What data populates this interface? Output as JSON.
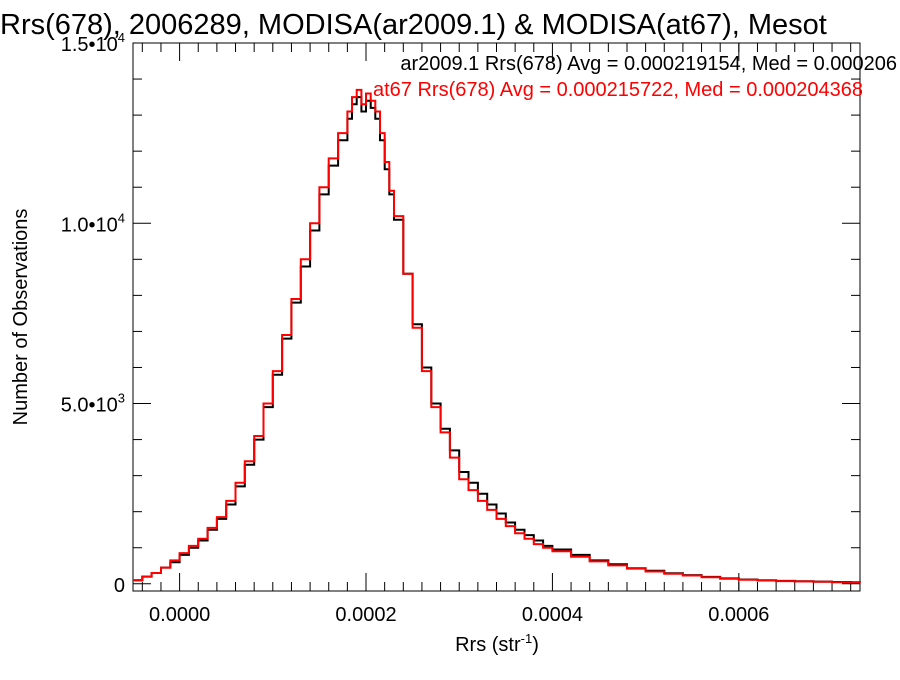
{
  "chart_data": {
    "type": "line",
    "title": "Rrs(678), 2006289, MODISA(ar2009.1) & MODISA(at67), Mesot",
    "xlabel": "Rrs (str",
    "xlabel_sup": "-1",
    "xlabel_end": ")",
    "ylabel": "Number of Observations",
    "xlim": [
      -5e-05,
      0.00073
    ],
    "ylim": [
      -200,
      15000
    ],
    "grid": false,
    "legend_placement": "top-right",
    "x_ticks": [
      {
        "value": 0.0,
        "label": "0.0000"
      },
      {
        "value": 0.0002,
        "label": "0.0002"
      },
      {
        "value": 0.0004,
        "label": "0.0004"
      },
      {
        "value": 0.0006,
        "label": "0.0006"
      }
    ],
    "y_ticks": [
      {
        "value": 0,
        "label": "0",
        "sup": ""
      },
      {
        "value": 5000,
        "label": "5.0•10",
        "sup": "3"
      },
      {
        "value": 10000,
        "label": "1.0•10",
        "sup": "4"
      },
      {
        "value": 15000,
        "label": "1.5•10",
        "sup": "4"
      }
    ],
    "annotations": [
      {
        "text": "ar2009.1 Rrs(678) Avg = 0.000219154, Med = 0.000206",
        "color": "#000000"
      },
      {
        "text": "at67 Rrs(678) Avg = 0.000215722, Med = 0.000204368",
        "color": "#ff0000"
      }
    ],
    "series": [
      {
        "color": "#000000",
        "x": [
          -5e-05,
          -4e-05,
          -3e-05,
          -2e-05,
          -1e-05,
          0.0,
          1e-05,
          2e-05,
          3e-05,
          4e-05,
          5e-05,
          6e-05,
          7e-05,
          8e-05,
          9e-05,
          0.0001,
          0.00011,
          0.00012,
          0.00013,
          0.00014,
          0.00015,
          0.00016,
          0.00017,
          0.00018,
          0.000185,
          0.00019,
          0.000195,
          0.0002,
          0.000205,
          0.00021,
          0.000215,
          0.00022,
          0.000225,
          0.00023,
          0.00024,
          0.00025,
          0.00026,
          0.00027,
          0.00028,
          0.00029,
          0.0003,
          0.00031,
          0.00032,
          0.00033,
          0.00034,
          0.00035,
          0.00036,
          0.00037,
          0.00038,
          0.00039,
          0.0004,
          0.00042,
          0.00044,
          0.00046,
          0.00048,
          0.0005,
          0.00052,
          0.00054,
          0.00056,
          0.00058,
          0.0006,
          0.00062,
          0.00064,
          0.00066,
          0.00068,
          0.0007,
          0.00072,
          0.00073
        ],
        "y": [
          100,
          200,
          300,
          450,
          600,
          800,
          1000,
          1200,
          1500,
          1800,
          2200,
          2700,
          3300,
          4000,
          4900,
          5800,
          6800,
          7800,
          8800,
          9800,
          10800,
          11600,
          12300,
          12900,
          13300,
          13500,
          13100,
          13400,
          13200,
          12900,
          12300,
          11500,
          10800,
          10100,
          8600,
          7200,
          6000,
          5000,
          4300,
          3700,
          3100,
          2800,
          2500,
          2200,
          1950,
          1700,
          1500,
          1350,
          1200,
          1050,
          950,
          800,
          650,
          540,
          430,
          360,
          290,
          240,
          190,
          150,
          120,
          100,
          80,
          70,
          60,
          50,
          40,
          35
        ]
      },
      {
        "color": "#ff0000",
        "x": [
          -5e-05,
          -4e-05,
          -3e-05,
          -2e-05,
          -1e-05,
          0.0,
          1e-05,
          2e-05,
          3e-05,
          4e-05,
          5e-05,
          6e-05,
          7e-05,
          8e-05,
          9e-05,
          0.0001,
          0.00011,
          0.00012,
          0.00013,
          0.00014,
          0.00015,
          0.00016,
          0.00017,
          0.00018,
          0.000185,
          0.00019,
          0.000195,
          0.0002,
          0.000205,
          0.00021,
          0.000215,
          0.00022,
          0.000225,
          0.00023,
          0.00024,
          0.00025,
          0.00026,
          0.00027,
          0.00028,
          0.00029,
          0.0003,
          0.00031,
          0.00032,
          0.00033,
          0.00034,
          0.00035,
          0.00036,
          0.00037,
          0.00038,
          0.00039,
          0.0004,
          0.00042,
          0.00044,
          0.00046,
          0.00048,
          0.0005,
          0.00052,
          0.00054,
          0.00056,
          0.00058,
          0.0006,
          0.00062,
          0.00064,
          0.00066,
          0.00068,
          0.0007,
          0.00072,
          0.00073
        ],
        "y": [
          100,
          200,
          300,
          450,
          650,
          850,
          1050,
          1250,
          1550,
          1850,
          2300,
          2800,
          3400,
          4100,
          5000,
          5900,
          6900,
          7900,
          9000,
          10000,
          11000,
          11800,
          12500,
          13100,
          13500,
          13700,
          13300,
          13600,
          13400,
          13100,
          12500,
          11700,
          10900,
          10200,
          8600,
          7100,
          5900,
          4900,
          4200,
          3500,
          2900,
          2600,
          2300,
          2050,
          1800,
          1600,
          1400,
          1250,
          1100,
          1000,
          900,
          750,
          620,
          510,
          420,
          340,
          280,
          230,
          180,
          140,
          110,
          90,
          75,
          65,
          55,
          45,
          38,
          32
        ]
      }
    ]
  }
}
